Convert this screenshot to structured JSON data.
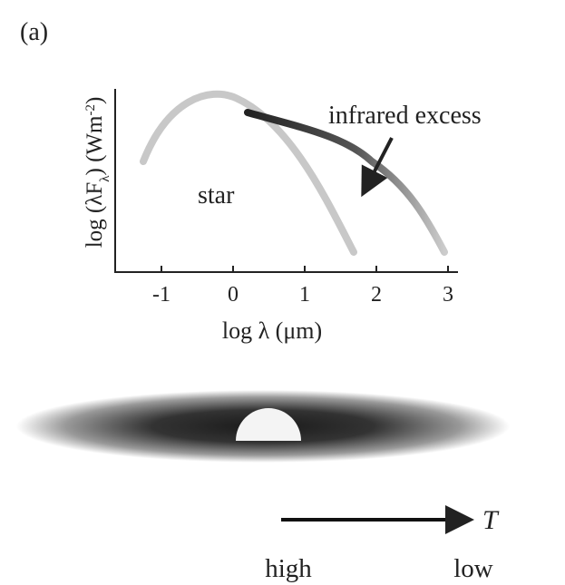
{
  "panel_label": "(a)",
  "plot": {
    "y_axis_label": [
      "log (λF",
      "λ",
      ")  (Wm",
      "-2",
      ")"
    ],
    "x_axis_label": "log λ (μm)",
    "x_tick_labels": [
      -1,
      0,
      1,
      2,
      3
    ],
    "star_label": "star",
    "excess_label": "infrared excess"
  },
  "temperature_scale": {
    "axis_label": "T",
    "left_label": "high",
    "right_label": "low"
  }
}
